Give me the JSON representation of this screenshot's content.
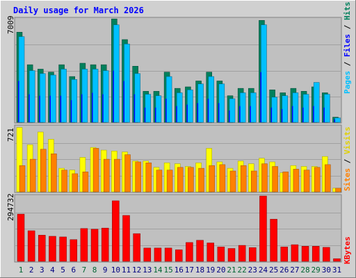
{
  "header": {
    "title": "Daily usage for March 2026"
  },
  "legends": {
    "pages": "Pages",
    "files": "Files",
    "hits": "Hits",
    "sites": "Sites",
    "visits": "Visits",
    "kbytes": "KBytes",
    "sep": "/"
  },
  "axes": {
    "top_max": "7009",
    "mid_max": "721",
    "bot_max": "294732"
  },
  "colors": {
    "hits": "#00805c",
    "files": "#0000ff",
    "pages": "#00c0ff",
    "visits": "#ffff00",
    "sites": "#ff8000",
    "kbytes": "#ff0000",
    "weekend_day": "#006633",
    "weekday": "#000080",
    "title": "#0000ff",
    "panel": "#c0c0c0"
  },
  "chart_data": [
    {
      "type": "bar",
      "title": "Daily usage for March 2026",
      "panel": "hits-files-pages",
      "categories": [
        "1",
        "2",
        "3",
        "4",
        "5",
        "6",
        "7",
        "8",
        "9",
        "10",
        "11",
        "12",
        "13",
        "14",
        "15",
        "16",
        "17",
        "18",
        "19",
        "20",
        "21",
        "22",
        "23",
        "24",
        "25",
        "26",
        "27",
        "28",
        "29",
        "30",
        "31"
      ],
      "weekend": [
        1,
        7,
        8,
        14,
        15,
        21,
        22,
        28,
        29
      ],
      "ylim": [
        0,
        7009
      ],
      "series": [
        {
          "name": "Hits",
          "values": [
            6100,
            3900,
            3600,
            3400,
            3900,
            3100,
            4000,
            3900,
            3900,
            7000,
            5600,
            3800,
            2100,
            2100,
            3400,
            2300,
            2400,
            2800,
            3400,
            2800,
            1800,
            2300,
            2300,
            6900,
            2200,
            2000,
            2300,
            2100,
            2400,
            2000,
            350
          ]
        },
        {
          "name": "Files",
          "values": [
            2800,
            1900,
            1800,
            1800,
            1800,
            1500,
            1900,
            2000,
            1900,
            3500,
            2800,
            1900,
            1000,
            1000,
            1600,
            1100,
            1200,
            1300,
            1600,
            1300,
            800,
            1100,
            1100,
            3400,
            1000,
            900,
            1100,
            1000,
            1100,
            1000,
            200
          ]
        },
        {
          "name": "Pages",
          "values": [
            5800,
            3500,
            3300,
            3200,
            3600,
            2900,
            3600,
            3600,
            3500,
            6600,
            5300,
            3300,
            1900,
            1800,
            3100,
            2000,
            2200,
            2600,
            3100,
            2600,
            1600,
            2000,
            2000,
            6600,
            1700,
            1800,
            2000,
            1900,
            2700,
            1900,
            300
          ]
        }
      ]
    },
    {
      "type": "bar",
      "panel": "visits-sites",
      "categories": [
        "1",
        "2",
        "3",
        "4",
        "5",
        "6",
        "7",
        "8",
        "9",
        "10",
        "11",
        "12",
        "13",
        "14",
        "15",
        "16",
        "17",
        "18",
        "19",
        "20",
        "21",
        "22",
        "23",
        "24",
        "25",
        "26",
        "27",
        "28",
        "29",
        "30",
        "31"
      ],
      "ylim": [
        0,
        721
      ],
      "series": [
        {
          "name": "Visits",
          "values": [
            710,
            520,
            660,
            580,
            260,
            240,
            380,
            490,
            460,
            450,
            440,
            340,
            340,
            270,
            320,
            310,
            280,
            320,
            480,
            330,
            260,
            340,
            310,
            370,
            330,
            210,
            290,
            280,
            280,
            390,
            40
          ]
        },
        {
          "name": "Sites",
          "values": [
            290,
            360,
            470,
            420,
            240,
            200,
            220,
            480,
            360,
            360,
            410,
            330,
            320,
            240,
            240,
            270,
            270,
            260,
            290,
            300,
            230,
            290,
            230,
            310,
            280,
            220,
            250,
            240,
            270,
            300,
            40
          ]
        }
      ]
    },
    {
      "type": "bar",
      "panel": "kbytes",
      "categories": [
        "1",
        "2",
        "3",
        "4",
        "5",
        "6",
        "7",
        "8",
        "9",
        "10",
        "11",
        "12",
        "13",
        "14",
        "15",
        "16",
        "17",
        "18",
        "19",
        "20",
        "21",
        "22",
        "23",
        "24",
        "25",
        "26",
        "27",
        "28",
        "29",
        "30",
        "31"
      ],
      "ylim": [
        0,
        294732
      ],
      "series": [
        {
          "name": "KBytes",
          "values": [
            213000,
            138000,
            118000,
            113000,
            110000,
            98000,
            148000,
            145000,
            150000,
            273000,
            207000,
            125000,
            60000,
            60000,
            60000,
            52000,
            85000,
            95000,
            83000,
            65000,
            58000,
            72000,
            62000,
            294732,
            190000,
            65000,
            75000,
            68000,
            68000,
            63000,
            12000
          ]
        }
      ]
    }
  ]
}
